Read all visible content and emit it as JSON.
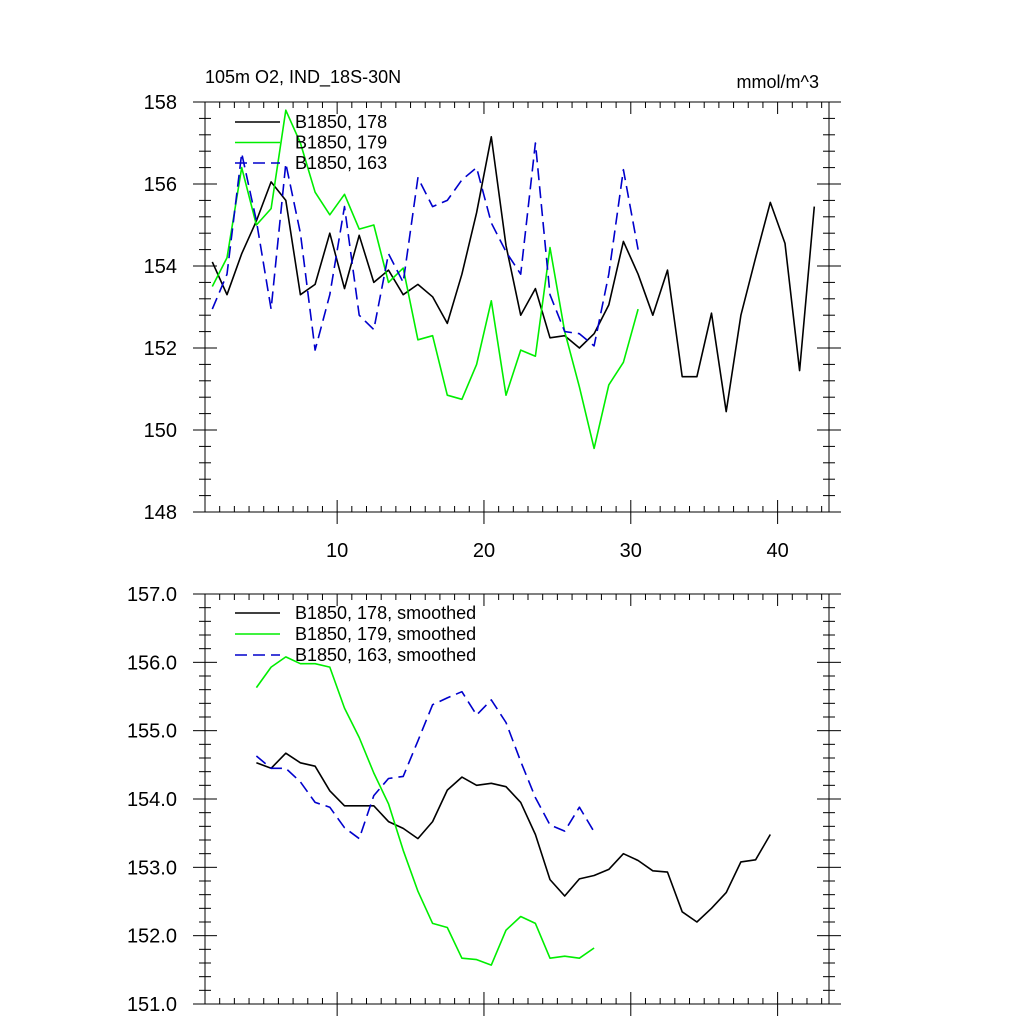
{
  "chart_data": [
    {
      "type": "line",
      "title": "105m O2, IND_18S-30N",
      "units": "mmol/m^3",
      "xlim": [
        1,
        43.5
      ],
      "ylim": [
        148,
        158
      ],
      "xticks": [
        10,
        20,
        30,
        40
      ],
      "yticks": [
        148,
        150,
        152,
        154,
        156,
        158
      ],
      "ytick_labels": [
        "148",
        "150",
        "152",
        "154",
        "156",
        "158"
      ],
      "legend_position": "top-left",
      "series": [
        {
          "name": "B1850, 178",
          "color": "#000000",
          "dash": "solid",
          "x": [
            1.5,
            2.5,
            3.5,
            4.5,
            5.5,
            6.5,
            7.5,
            8.5,
            9.5,
            10.5,
            11.5,
            12.5,
            13.5,
            14.5,
            15.5,
            16.5,
            17.5,
            18.5,
            19.5,
            20.5,
            21.5,
            22.5,
            23.5,
            24.5,
            25.5,
            26.5,
            27.5,
            28.5,
            29.5,
            30.5,
            31.5,
            32.5,
            33.5,
            34.5,
            35.5,
            36.5,
            37.5,
            38.5,
            39.5,
            40.5,
            41.5,
            42.5
          ],
          "y": [
            154.1,
            153.3,
            154.3,
            155.1,
            156.05,
            155.6,
            153.3,
            153.55,
            154.8,
            153.45,
            154.75,
            153.6,
            153.9,
            153.3,
            153.55,
            153.25,
            152.6,
            153.8,
            155.3,
            157.15,
            154.5,
            152.8,
            153.45,
            152.25,
            152.3,
            152.0,
            152.35,
            153.05,
            154.6,
            153.8,
            152.8,
            153.9,
            151.3,
            151.3,
            152.85,
            150.45,
            152.8,
            154.2,
            155.55,
            154.55,
            151.45,
            155.45
          ]
        },
        {
          "name": "B1850, 179",
          "color": "#00ee00",
          "dash": "solid",
          "x": [
            1.5,
            2.5,
            3.5,
            4.5,
            5.5,
            6.5,
            7.5,
            8.5,
            9.5,
            10.5,
            11.5,
            12.5,
            13.5,
            14.5,
            15.5,
            16.5,
            17.5,
            18.5,
            19.5,
            20.5,
            21.5,
            22.5,
            23.5,
            24.5,
            25.5,
            26.5,
            27.5,
            28.5,
            29.5,
            30.5
          ],
          "y": [
            153.5,
            154.2,
            156.4,
            155.0,
            155.4,
            157.8,
            157.0,
            155.8,
            155.25,
            155.75,
            154.9,
            155.0,
            153.6,
            153.95,
            152.2,
            152.3,
            150.85,
            150.75,
            151.6,
            153.15,
            150.85,
            151.95,
            151.8,
            154.45,
            152.4,
            151.05,
            149.55,
            151.1,
            151.65,
            152.95
          ]
        },
        {
          "name": "B1850, 163",
          "color": "#0000cc",
          "dash": "dashed",
          "x": [
            1.5,
            2.5,
            3.5,
            4.5,
            5.5,
            6.5,
            7.5,
            8.5,
            9.5,
            10.5,
            11.5,
            12.5,
            13.5,
            14.5,
            15.5,
            16.5,
            17.5,
            18.5,
            19.5,
            20.5,
            21.5,
            22.5,
            23.5,
            24.5,
            25.5,
            26.5,
            27.5,
            28.5,
            29.5,
            30.5
          ],
          "y": [
            152.95,
            153.8,
            156.75,
            155.1,
            152.95,
            156.5,
            154.8,
            151.95,
            153.3,
            155.45,
            152.8,
            152.45,
            154.3,
            153.6,
            156.15,
            155.45,
            155.6,
            156.1,
            156.4,
            155.05,
            154.35,
            153.8,
            157.0,
            153.3,
            152.4,
            152.35,
            152.05,
            153.8,
            156.35,
            154.4
          ]
        }
      ]
    },
    {
      "type": "line",
      "xlim": [
        1,
        43.5
      ],
      "ylim": [
        151,
        157
      ],
      "xticks": [
        10,
        20,
        30,
        40
      ],
      "yticks": [
        151,
        152,
        153,
        154,
        155,
        156,
        157
      ],
      "ytick_labels": [
        "151.0",
        "152.0",
        "153.0",
        "154.0",
        "155.0",
        "156.0",
        "157.0"
      ],
      "legend_position": "top-left",
      "series": [
        {
          "name": "B1850, 178, smoothed",
          "color": "#000000",
          "dash": "solid",
          "x": [
            4.5,
            5.5,
            6.5,
            7.5,
            8.5,
            9.5,
            10.5,
            11.5,
            12.5,
            13.5,
            14.5,
            15.5,
            16.5,
            17.5,
            18.5,
            19.5,
            20.5,
            21.5,
            22.5,
            23.5,
            24.5,
            25.5,
            26.5,
            27.5,
            28.5,
            29.5,
            30.5,
            31.5,
            32.5,
            33.5,
            34.5,
            35.5,
            36.5,
            37.5,
            38.5,
            39.5
          ],
          "y": [
            154.53,
            154.45,
            154.67,
            154.53,
            154.48,
            154.12,
            153.9,
            153.9,
            153.9,
            153.67,
            153.57,
            153.42,
            153.67,
            154.13,
            154.32,
            154.2,
            154.23,
            154.18,
            153.95,
            153.48,
            152.82,
            152.58,
            152.83,
            152.88,
            152.97,
            153.2,
            153.1,
            152.95,
            152.93,
            152.35,
            152.2,
            152.4,
            152.63,
            153.08,
            153.11,
            153.48
          ]
        },
        {
          "name": "B1850, 179, smoothed",
          "color": "#00ee00",
          "dash": "solid",
          "x": [
            4.5,
            5.5,
            6.5,
            7.5,
            8.5,
            9.5,
            10.5,
            11.5,
            12.5,
            13.5,
            14.5,
            15.5,
            16.5,
            17.5,
            18.5,
            19.5,
            20.5,
            21.5,
            22.5,
            23.5,
            24.5,
            25.5,
            26.5,
            27.5
          ],
          "y": [
            155.63,
            155.93,
            156.08,
            155.98,
            155.98,
            155.93,
            155.33,
            154.9,
            154.38,
            153.93,
            153.25,
            152.65,
            152.18,
            152.12,
            151.67,
            151.65,
            151.57,
            152.08,
            152.28,
            152.18,
            151.67,
            151.7,
            151.67,
            151.82
          ]
        },
        {
          "name": "B1850, 163, smoothed",
          "color": "#0000cc",
          "dash": "dashed",
          "x": [
            4.5,
            5.5,
            6.5,
            7.5,
            8.5,
            9.5,
            10.5,
            11.5,
            12.5,
            13.5,
            14.5,
            15.5,
            16.5,
            17.5,
            18.5,
            19.5,
            20.5,
            21.5,
            22.5,
            23.5,
            24.5,
            25.5,
            26.5,
            27.5
          ],
          "y": [
            154.63,
            154.45,
            154.45,
            154.25,
            153.95,
            153.88,
            153.58,
            153.42,
            154.05,
            154.3,
            154.33,
            154.85,
            155.38,
            155.48,
            155.57,
            155.23,
            155.45,
            155.12,
            154.55,
            154.02,
            153.62,
            153.53,
            153.88,
            153.52
          ]
        }
      ]
    }
  ]
}
